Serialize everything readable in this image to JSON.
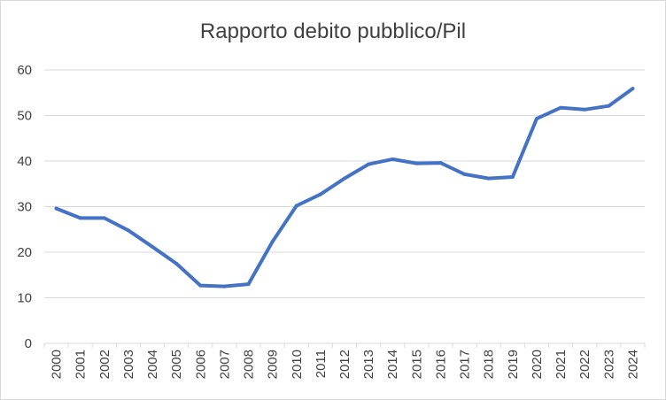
{
  "chart_data": {
    "type": "line",
    "title": "Rapporto debito pubblico/Pil",
    "xlabel": "",
    "ylabel": "",
    "categories": [
      "2000",
      "2001",
      "2002",
      "2003",
      "2004",
      "2005",
      "2006",
      "2007",
      "2008",
      "2009",
      "2010",
      "2011",
      "2012",
      "2013",
      "2014",
      "2015",
      "2016",
      "2017",
      "2018",
      "2019",
      "2020",
      "2021",
      "2022",
      "2023",
      "2024"
    ],
    "series": [
      {
        "values": [
          29.6,
          27.5,
          27.5,
          24.8,
          21.2,
          17.5,
          12.7,
          12.5,
          13.0,
          22.3,
          30.2,
          32.7,
          36.2,
          39.3,
          40.4,
          39.5,
          39.6,
          37.1,
          36.2,
          36.5,
          49.3,
          51.7,
          51.3,
          52.1,
          55.9
        ],
        "color": "#4472c4"
      }
    ],
    "yticks": [
      "0",
      "10",
      "20",
      "30",
      "40",
      "50",
      "60"
    ],
    "ylim": [
      0,
      60
    ],
    "grid": true,
    "legend": "none"
  }
}
